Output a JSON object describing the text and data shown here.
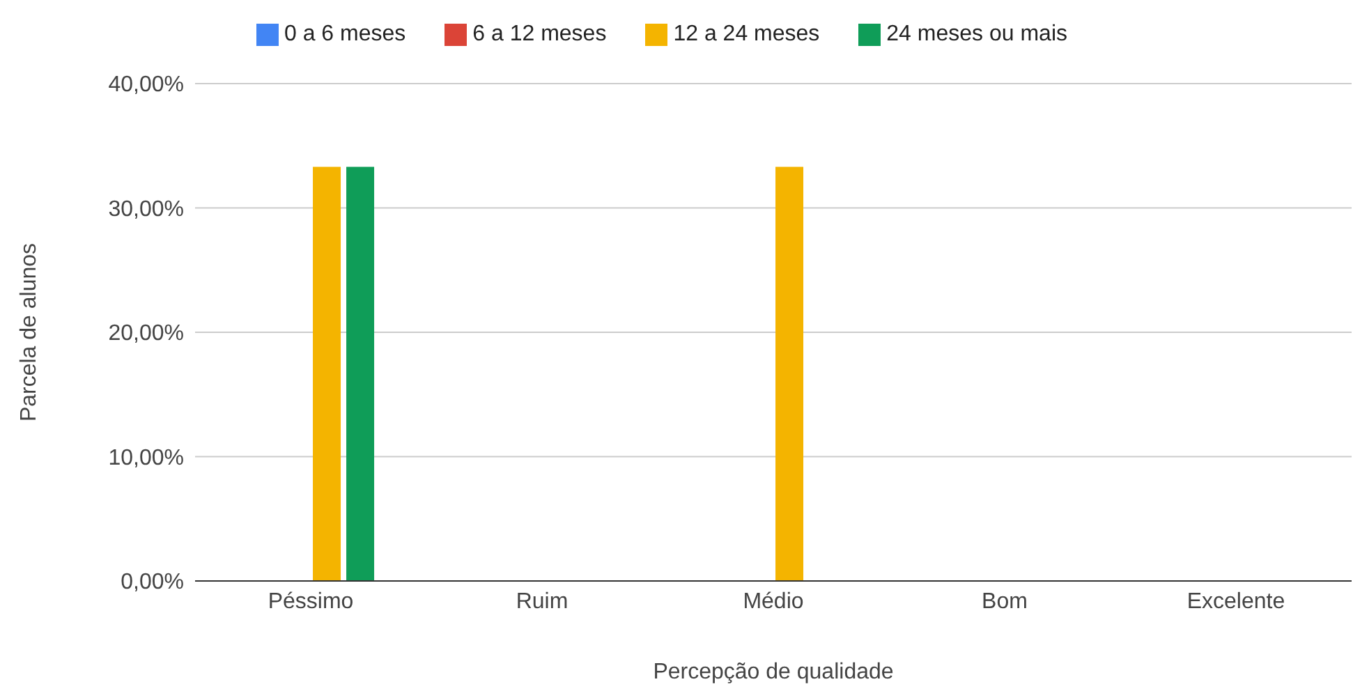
{
  "chart_data": {
    "type": "bar",
    "xlabel": "Percepção de qualidade",
    "ylabel": "Parcela de alunos",
    "categories": [
      "Péssimo",
      "Ruim",
      "Médio",
      "Bom",
      "Excelente"
    ],
    "series": [
      {
        "name": "0 a 6 meses",
        "color": "#4285f4",
        "values": [
          0,
          0,
          0,
          0,
          0
        ]
      },
      {
        "name": "6 a 12 meses",
        "color": "#db4437",
        "values": [
          0,
          0,
          0,
          0,
          0
        ]
      },
      {
        "name": "12 a 24 meses",
        "color": "#f4b400",
        "values": [
          33.3,
          0,
          33.3,
          0,
          0
        ]
      },
      {
        "name": "24 meses ou mais",
        "color": "#0f9d58",
        "values": [
          33.3,
          0,
          0,
          0,
          0
        ]
      }
    ],
    "ylim": [
      0,
      40
    ],
    "yticks": [
      {
        "value": 0,
        "label": "0,00%"
      },
      {
        "value": 10,
        "label": "10,00%"
      },
      {
        "value": 20,
        "label": "20,00%"
      },
      {
        "value": 30,
        "label": "30,00%"
      },
      {
        "value": 40,
        "label": "40,00%"
      }
    ],
    "grid": "y",
    "legend": "top"
  }
}
